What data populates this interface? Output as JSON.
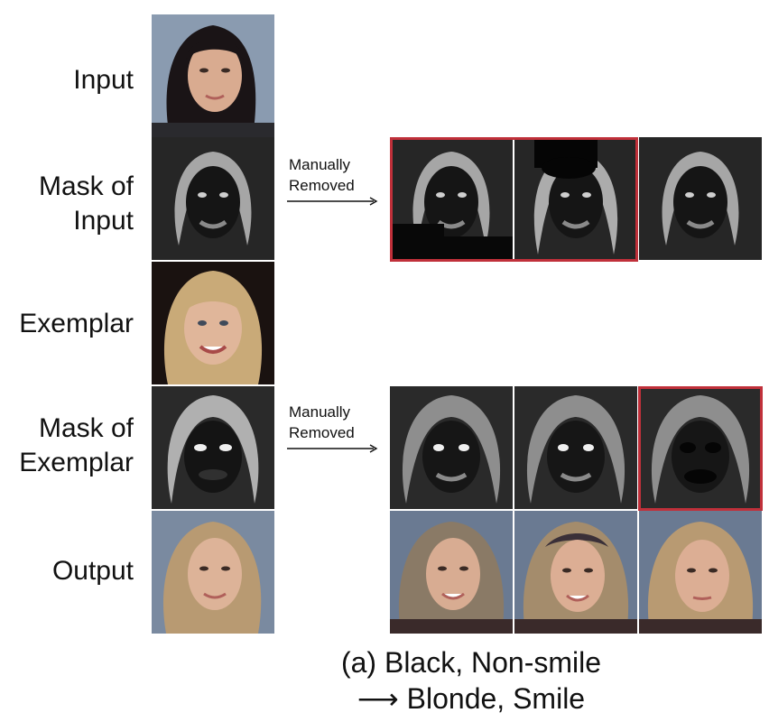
{
  "rows": {
    "input": "Input",
    "mask_input_1": "Mask of",
    "mask_input_2": "Input",
    "exemplar": "Exemplar",
    "mask_exemplar_1": "Mask of",
    "mask_exemplar_2": "Exemplar",
    "output": "Output"
  },
  "annotations": {
    "manual_top_1": "Manually",
    "manual_top_2": "Removed",
    "manual_bottom_1": "Manually",
    "manual_bottom_2": "Removed"
  },
  "caption": {
    "line1": "(a) Black, Non-smile",
    "line2": "⟶ Blonde, Smile"
  },
  "colors": {
    "highlight_border": "#c0303a"
  }
}
